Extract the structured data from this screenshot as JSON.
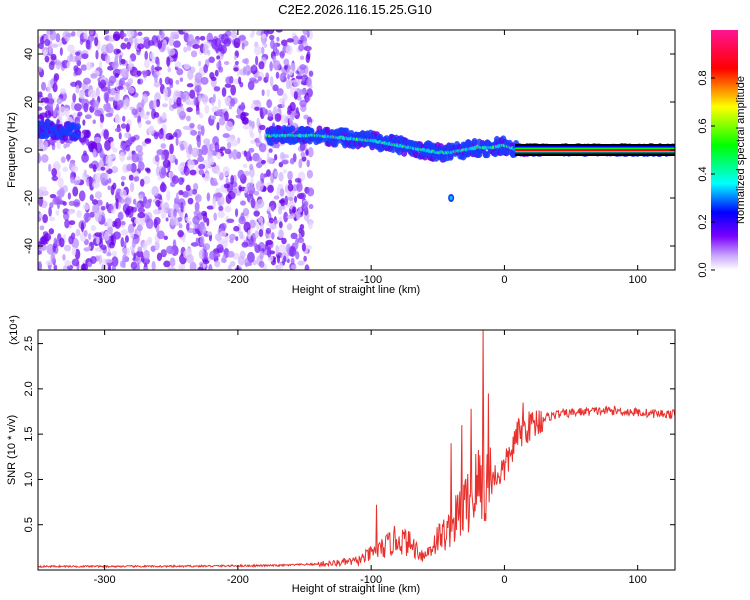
{
  "title": "C2E2.2026.116.15.25.G10",
  "chart_data": [
    {
      "type": "heatmap",
      "xlabel": "Height of straight line (km)",
      "ylabel": "Frequency (Hz)",
      "xlim": [
        -350,
        128
      ],
      "ylim": [
        -50,
        50
      ],
      "xticks": [
        -300,
        -200,
        -100,
        0,
        100
      ],
      "yticks": [
        -40,
        -20,
        0,
        20,
        40
      ],
      "colorbar": {
        "label": "Normalized spectral amplitude",
        "range": [
          0,
          1
        ],
        "ticks": [
          "0.0",
          "0.2",
          "0.4",
          "0.6",
          "0.8"
        ],
        "colors": [
          "#ffffff",
          "#7a00ff",
          "#0000ff",
          "#00ffff",
          "#00ff00",
          "#ffff00",
          "#ff0000",
          "#ff1493"
        ]
      },
      "noise_region_x": [
        -350,
        -145
      ],
      "ridge": {
        "x": [
          -350,
          -330,
          -320,
          -175,
          -160,
          -140,
          -120,
          -100,
          -90,
          -80,
          -70,
          -60,
          -50,
          -40,
          -30,
          -20,
          -10,
          0,
          10,
          128
        ],
        "y": [
          9,
          8,
          7,
          6,
          6,
          6,
          5,
          4,
          3,
          2,
          1,
          0,
          -1,
          -1,
          0,
          1,
          1,
          2,
          0,
          0
        ]
      }
    },
    {
      "type": "line",
      "xlabel": "Height of straight line (km)",
      "ylabel": "SNR (10 * v/v)",
      "yscale_label": "(x10⁴)",
      "xlim": [
        -350,
        128
      ],
      "ylim": [
        0,
        2.65
      ],
      "xticks": [
        -300,
        -200,
        -100,
        0,
        100
      ],
      "yticks": [
        0.5,
        1.0,
        1.5,
        2.0,
        2.5
      ],
      "yticklabels": [
        "0.5",
        "1.0",
        "1.5",
        "2.0",
        "2.5"
      ],
      "series": [
        {
          "color": "#e8302c",
          "x": [
            -350,
            -250,
            -170,
            -130,
            -110,
            -100,
            -90,
            -80,
            -70,
            -60,
            -50,
            -40,
            -35,
            -30,
            -25,
            -20,
            -15,
            -10,
            -5,
            0,
            5,
            10,
            20,
            30,
            40,
            60,
            80,
            100,
            110,
            128
          ],
          "y": [
            0.04,
            0.04,
            0.05,
            0.07,
            0.1,
            0.18,
            0.25,
            0.35,
            0.28,
            0.15,
            0.35,
            0.45,
            0.6,
            0.7,
            0.8,
            0.95,
            0.9,
            1.0,
            1.05,
            1.12,
            1.3,
            1.5,
            1.6,
            1.68,
            1.72,
            1.75,
            1.76,
            1.74,
            1.73,
            1.72
          ]
        }
      ],
      "spikes": [
        {
          "x": -96,
          "y": 0.72
        },
        {
          "x": -40,
          "y": 1.4
        },
        {
          "x": -32,
          "y": 1.6
        },
        {
          "x": -25,
          "y": 1.78
        },
        {
          "x": -16,
          "y": 2.65
        },
        {
          "x": -12,
          "y": 1.95
        },
        {
          "x": 14,
          "y": 1.85
        }
      ]
    }
  ]
}
